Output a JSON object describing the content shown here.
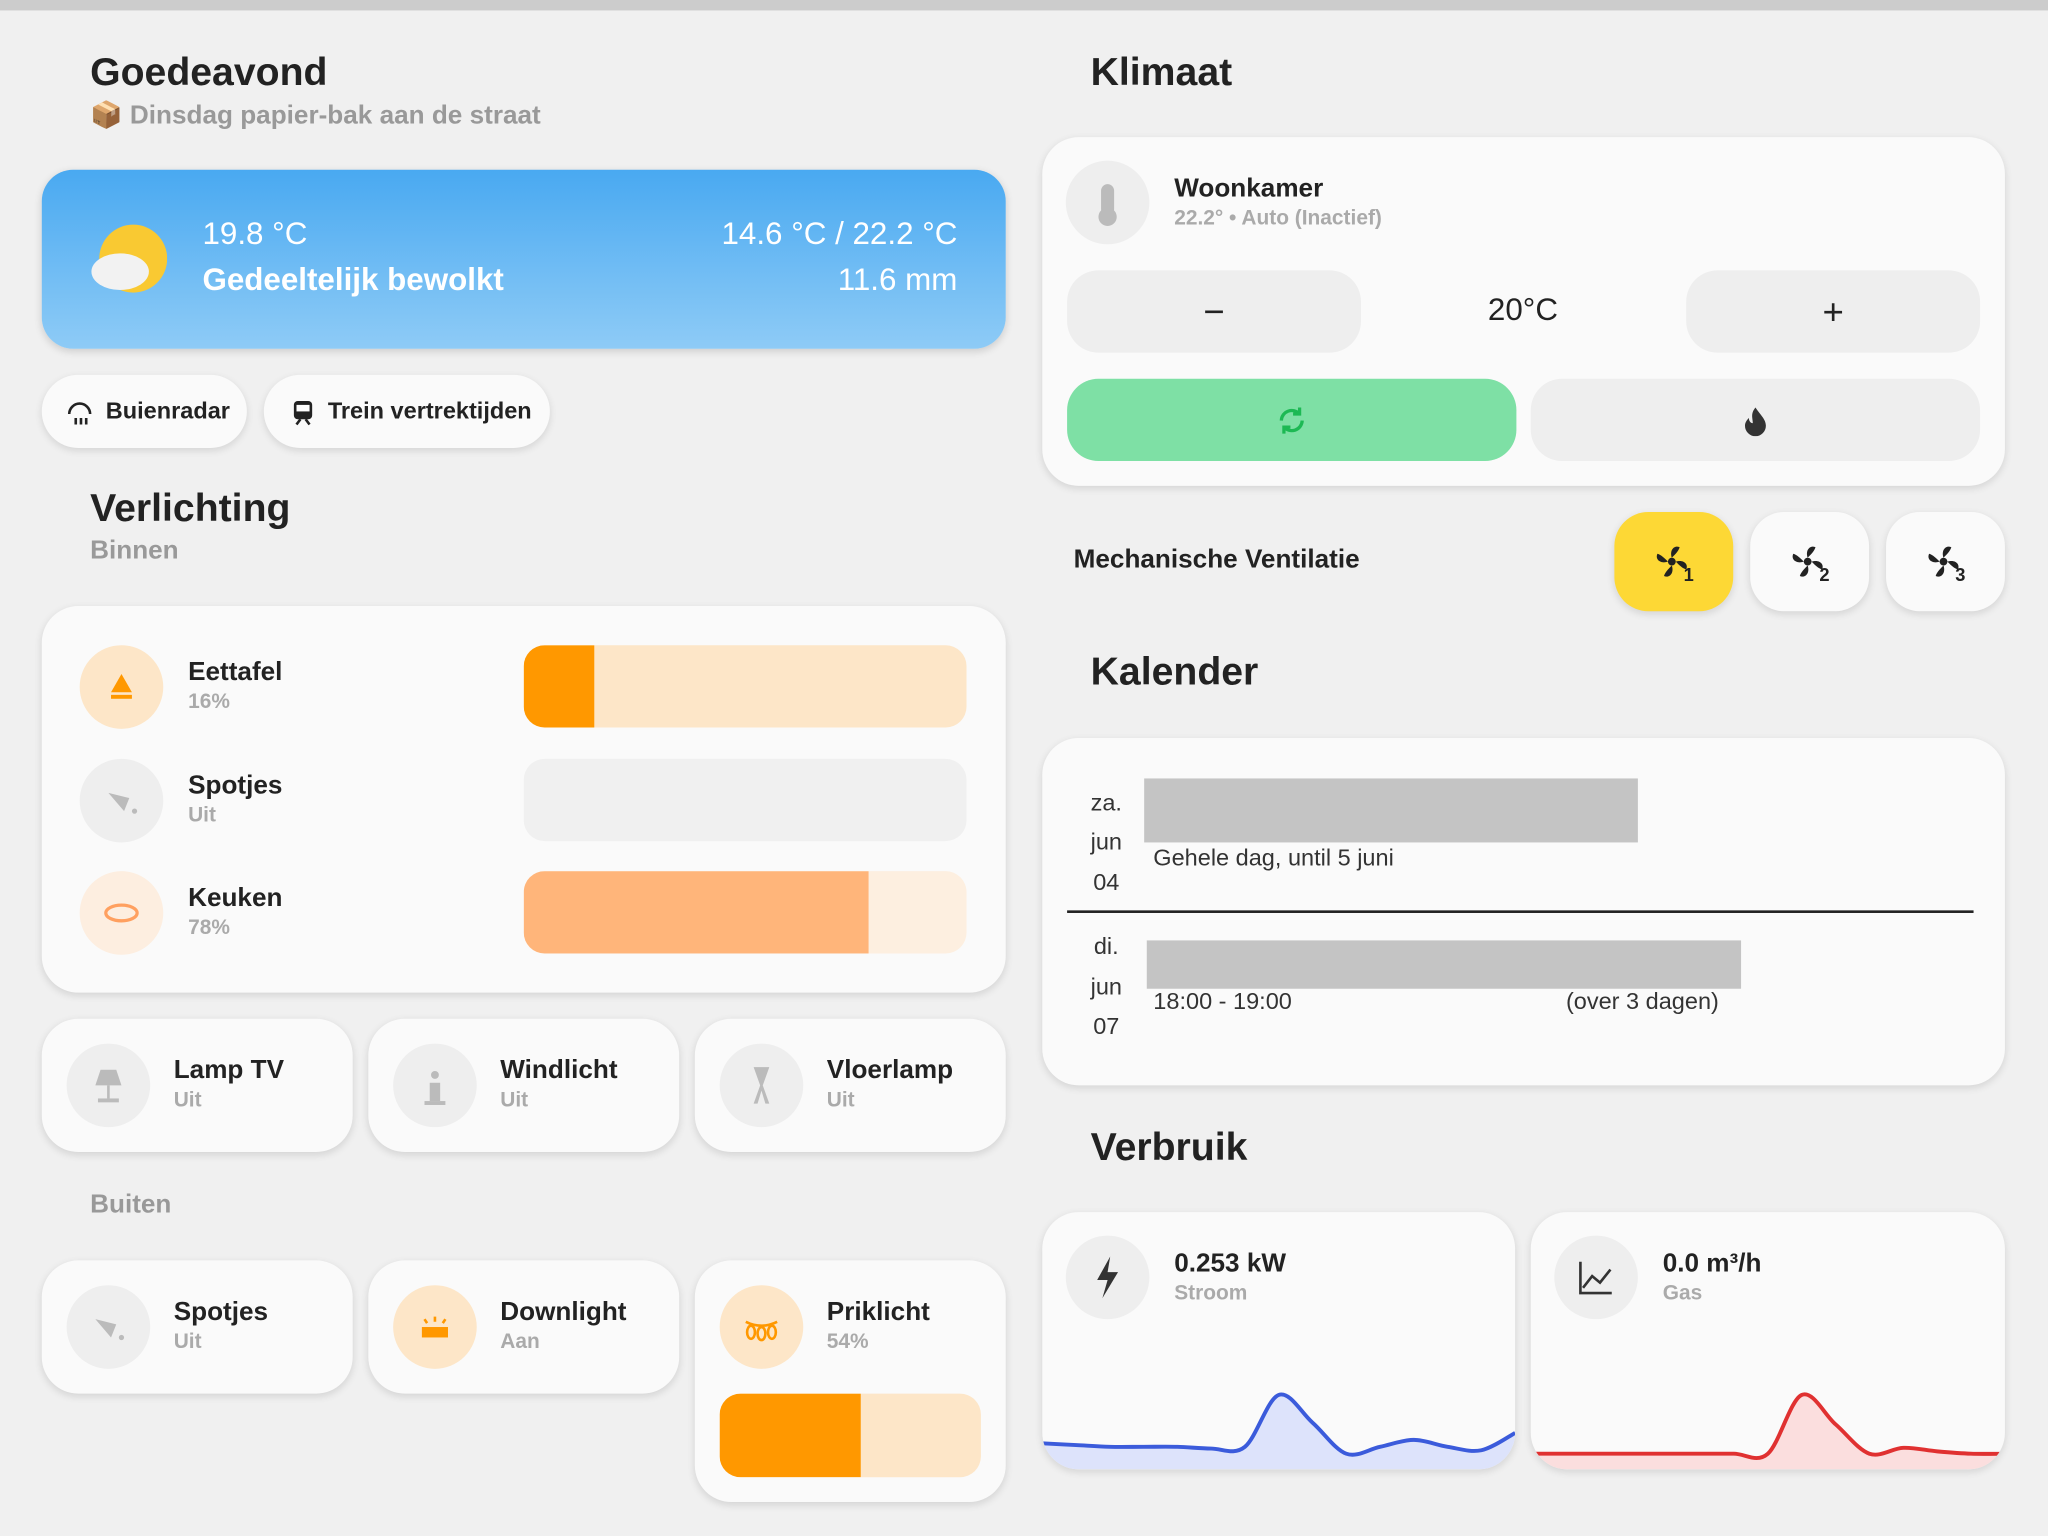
{
  "header": {
    "title": "Goedeavond",
    "subtitle": "📦 Dinsdag papier-bak aan de straat"
  },
  "weather": {
    "temperature": "19.8 °C",
    "condition": "Gedeeltelijk bewolkt",
    "range": "14.6 °C / 22.2 °C",
    "precipitation": "11.6 mm"
  },
  "chips": [
    "Buienradar",
    "Trein vertrektijden"
  ],
  "lighting": {
    "title": "Verlichting",
    "subtitle": "Binnen",
    "sliders": [
      {
        "name": "Eettafel",
        "state": "16%",
        "brightness": 16
      },
      {
        "name": "Spotjes",
        "state": "Uit",
        "brightness": 0
      },
      {
        "name": "Keuken",
        "state": "78%",
        "brightness": 78
      }
    ],
    "tiles": [
      {
        "name": "Lamp TV",
        "state": "Uit"
      },
      {
        "name": "Windlicht",
        "state": "Uit"
      },
      {
        "name": "Vloerlamp",
        "state": "Uit"
      }
    ],
    "outdoor_title": "Buiten",
    "outdoor": [
      {
        "name": "Spotjes",
        "state": "Uit"
      },
      {
        "name": "Downlight",
        "state": "Aan"
      },
      {
        "name": "Priklicht",
        "state": "54%",
        "brightness": 54
      }
    ]
  },
  "climate": {
    "title": "Klimaat",
    "name": "Woonkamer",
    "status": "22.2° • Auto (Inactief)",
    "minus": "−",
    "setpoint": "20°C",
    "plus": "+",
    "ventilation": "Mechanische Ventilatie",
    "fan_levels": [
      "1",
      "2",
      "3"
    ]
  },
  "calendar": {
    "title": "Kalender",
    "events": [
      {
        "day": "za.",
        "month": "jun",
        "date": "04",
        "time": "Gehele dag, until 5 juni"
      },
      {
        "day": "di.",
        "month": "jun",
        "date": "07",
        "time": "18:00 - 19:00",
        "relative": "(over 3 dagen)"
      }
    ]
  },
  "energy": {
    "title": "Verbruik",
    "cards": [
      {
        "value": "0.253 kW",
        "label": "Stroom",
        "history": [
          0.06,
          0.055,
          0.05,
          0.05,
          0.05,
          0.045,
          0.05,
          0.2,
          0.12,
          0.03,
          0.05,
          0.07,
          0.05,
          0.04,
          0.09
        ]
      },
      {
        "value": "0.0 m³/h",
        "label": "Gas",
        "history": [
          0,
          0,
          0,
          0,
          0,
          0,
          0,
          0,
          0.5,
          0.25,
          0,
          0.05,
          0.02,
          0,
          0
        ]
      }
    ]
  }
}
